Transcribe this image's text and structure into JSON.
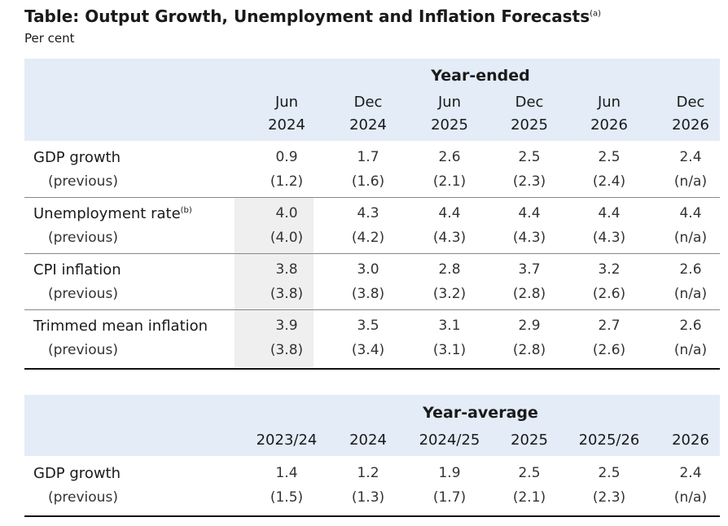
{
  "header": {
    "title": "Table: Output Growth, Unemployment and Inflation Forecasts",
    "title_note": "(a)",
    "subtitle": "Per cent"
  },
  "tables": [
    {
      "group": "Year-ended",
      "columns": [
        [
          "Jun",
          "2024"
        ],
        [
          "Dec",
          "2024"
        ],
        [
          "Jun",
          "2025"
        ],
        [
          "Dec",
          "2025"
        ],
        [
          "Jun",
          "2026"
        ],
        [
          "Dec",
          "2026"
        ]
      ],
      "rows": [
        {
          "label": "GDP growth",
          "values": [
            "0.9",
            "1.7",
            "2.6",
            "2.5",
            "2.5",
            "2.4"
          ],
          "previous_label": "(previous)",
          "previous": [
            "(1.2)",
            "(1.6)",
            "(2.1)",
            "(2.3)",
            "(2.4)",
            "(n/a)"
          ]
        },
        {
          "label": "Unemployment rate",
          "note": "(b)",
          "values": [
            "4.0",
            "4.3",
            "4.4",
            "4.4",
            "4.4",
            "4.4"
          ],
          "previous_label": "(previous)",
          "previous": [
            "(4.0)",
            "(4.2)",
            "(4.3)",
            "(4.3)",
            "(4.3)",
            "(n/a)"
          ]
        },
        {
          "label": "CPI inflation",
          "values": [
            "3.8",
            "3.0",
            "2.8",
            "3.7",
            "3.2",
            "2.6"
          ],
          "previous_label": "(previous)",
          "previous": [
            "(3.8)",
            "(3.8)",
            "(3.2)",
            "(2.8)",
            "(2.6)",
            "(n/a)"
          ]
        },
        {
          "label": "Trimmed mean inflation",
          "values": [
            "3.9",
            "3.5",
            "3.1",
            "2.9",
            "2.7",
            "2.6"
          ],
          "previous_label": "(previous)",
          "previous": [
            "(3.8)",
            "(3.4)",
            "(3.1)",
            "(2.8)",
            "(2.6)",
            "(n/a)"
          ]
        }
      ]
    },
    {
      "group": "Year-average",
      "columns": [
        [
          "2023/24"
        ],
        [
          "2024"
        ],
        [
          "2024/25"
        ],
        [
          "2025"
        ],
        [
          "2025/26"
        ],
        [
          "2026"
        ]
      ],
      "rows": [
        {
          "label": "GDP growth",
          "values": [
            "1.4",
            "1.2",
            "1.9",
            "2.5",
            "2.5",
            "2.4"
          ],
          "previous_label": "(previous)",
          "previous": [
            "(1.5)",
            "(1.3)",
            "(1.7)",
            "(2.1)",
            "(2.3)",
            "(n/a)"
          ]
        }
      ]
    }
  ]
}
